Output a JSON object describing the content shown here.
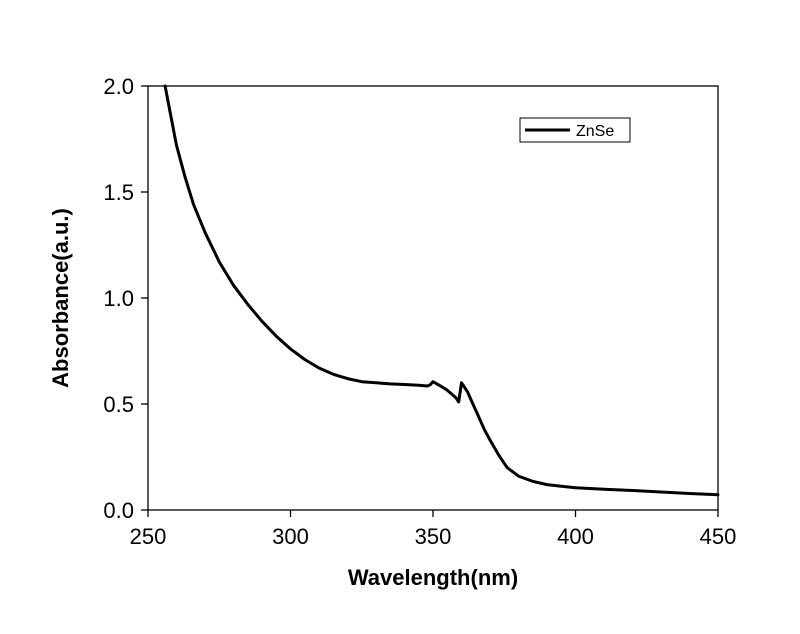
{
  "chart_data": {
    "type": "line",
    "xlabel": "Wavelength(nm)",
    "ylabel": "Absorbance(a.u.)",
    "xlim": [
      250,
      450
    ],
    "ylim": [
      0.0,
      2.0
    ],
    "x_ticks": [
      250,
      300,
      350,
      400,
      450
    ],
    "y_ticks": [
      0.0,
      0.5,
      1.0,
      1.5,
      2.0
    ],
    "x_tick_labels": [
      "250",
      "300",
      "350",
      "400",
      "450"
    ],
    "y_tick_labels": [
      "0.0",
      "0.5",
      "1.0",
      "1.5",
      "2.0"
    ],
    "grid": false,
    "legend_position": "top-right",
    "series": [
      {
        "name": "ZnSe",
        "color": "#000000",
        "x": [
          256,
          258,
          260,
          263,
          266,
          270,
          275,
          280,
          285,
          290,
          295,
          300,
          305,
          310,
          315,
          320,
          325,
          330,
          335,
          340,
          345,
          348,
          349,
          350,
          352,
          355,
          358,
          359,
          360,
          362,
          365,
          368,
          370,
          373,
          376,
          380,
          385,
          390,
          395,
          400,
          410,
          420,
          430,
          440,
          450
        ],
        "y": [
          2.0,
          1.86,
          1.72,
          1.57,
          1.44,
          1.31,
          1.17,
          1.06,
          0.97,
          0.89,
          0.82,
          0.76,
          0.71,
          0.67,
          0.64,
          0.62,
          0.605,
          0.6,
          0.595,
          0.592,
          0.588,
          0.585,
          0.59,
          0.605,
          0.59,
          0.565,
          0.53,
          0.51,
          0.6,
          0.56,
          0.47,
          0.38,
          0.33,
          0.26,
          0.2,
          0.16,
          0.135,
          0.12,
          0.112,
          0.105,
          0.098,
          0.092,
          0.085,
          0.078,
          0.072
        ]
      }
    ]
  }
}
